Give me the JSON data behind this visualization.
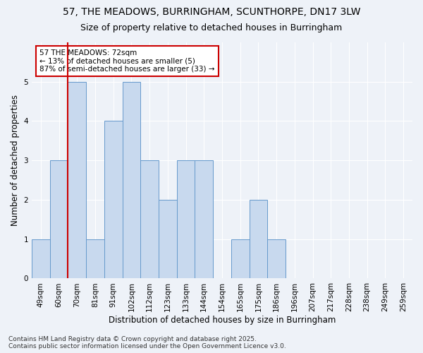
{
  "title": "57, THE MEADOWS, BURRINGHAM, SCUNTHORPE, DN17 3LW",
  "subtitle": "Size of property relative to detached houses in Burringham",
  "xlabel": "Distribution of detached houses by size in Burringham",
  "ylabel": "Number of detached properties",
  "categories": [
    "49sqm",
    "60sqm",
    "70sqm",
    "81sqm",
    "91sqm",
    "102sqm",
    "112sqm",
    "123sqm",
    "133sqm",
    "144sqm",
    "154sqm",
    "165sqm",
    "175sqm",
    "186sqm",
    "196sqm",
    "207sqm",
    "217sqm",
    "228sqm",
    "238sqm",
    "249sqm",
    "259sqm"
  ],
  "values": [
    1,
    3,
    5,
    1,
    4,
    5,
    3,
    2,
    3,
    3,
    0,
    1,
    2,
    1,
    0,
    0,
    0,
    0,
    0,
    0,
    0
  ],
  "bar_color": "#c8d9ee",
  "bar_edge_color": "#6699cc",
  "vline_index": 1.5,
  "annotation_text": "57 THE MEADOWS: 72sqm\n← 13% of detached houses are smaller (5)\n87% of semi-detached houses are larger (33) →",
  "annotation_box_color": "#ffffff",
  "annotation_box_edge_color": "#cc0000",
  "ylim": [
    0,
    6
  ],
  "yticks": [
    0,
    1,
    2,
    3,
    4,
    5
  ],
  "footnote": "Contains HM Land Registry data © Crown copyright and database right 2025.\nContains public sector information licensed under the Open Government Licence v3.0.",
  "title_fontsize": 10,
  "subtitle_fontsize": 9,
  "xlabel_fontsize": 8.5,
  "ylabel_fontsize": 8.5,
  "tick_fontsize": 7.5,
  "annotation_fontsize": 7.5,
  "footnote_fontsize": 6.5,
  "bg_color": "#eef2f8",
  "plot_bg_color": "#eef2f8",
  "grid_color": "#ffffff",
  "vline_color": "#cc0000"
}
